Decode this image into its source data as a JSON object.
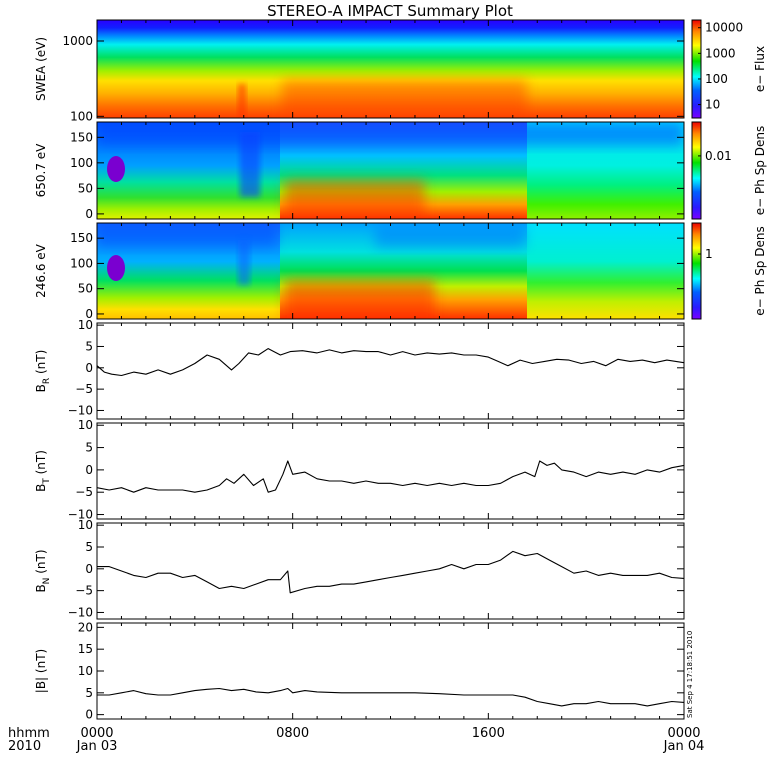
{
  "title": "STEREO-A IMPACT Summary Plot",
  "stamp": "Sat Sep  4 17:18:51 2010",
  "time_axis": {
    "label_top": "hhmm",
    "label_bottom": "2010",
    "ticks": [
      {
        "t": 0,
        "top": "0000",
        "bottom": "Jan 03"
      },
      {
        "t": 8,
        "top": "0800",
        "bottom": ""
      },
      {
        "t": 16,
        "top": "1600",
        "bottom": ""
      },
      {
        "t": 24,
        "top": "0000",
        "bottom": "Jan 04"
      }
    ]
  },
  "chart_data": [
    {
      "type": "heatmap",
      "ylabel": "SWEA (eV)",
      "ylog": true,
      "ylim": [
        95,
        1900
      ],
      "yticks": [
        {
          "v": 100,
          "label": "100"
        },
        {
          "v": 1000,
          "label": "1000"
        }
      ],
      "colorbar": {
        "label": "e− Flux",
        "log": true,
        "range": [
          3,
          20000
        ],
        "ticks": [
          {
            "v": 10,
            "label": "10"
          },
          {
            "v": 100,
            "label": "100"
          },
          {
            "v": 1000,
            "label": "1000"
          },
          {
            "v": 10000,
            "label": "10000"
          }
        ]
      }
    },
    {
      "type": "heatmap",
      "ylabel": "650.7 eV",
      "ylim": [
        -10,
        180
      ],
      "yticks": [
        {
          "v": 0,
          "label": "0"
        },
        {
          "v": 50,
          "label": "50"
        },
        {
          "v": 100,
          "label": "100"
        },
        {
          "v": 150,
          "label": "150"
        }
      ],
      "colorbar": {
        "label": "e− Ph Sp Dens",
        "log": true,
        "range": [
          0.0005,
          0.05
        ],
        "ticks": [
          {
            "v": 0.01,
            "label": "0.01"
          }
        ]
      }
    },
    {
      "type": "heatmap",
      "ylabel": "246.6 eV",
      "ylim": [
        -10,
        180
      ],
      "yticks": [
        {
          "v": 0,
          "label": "0"
        },
        {
          "v": 50,
          "label": "50"
        },
        {
          "v": 100,
          "label": "100"
        },
        {
          "v": 150,
          "label": "150"
        }
      ],
      "colorbar": {
        "label": "e− Ph Sp Dens",
        "log": true,
        "range": [
          0.1,
          3
        ],
        "ticks": [
          {
            "v": 1,
            "label": "1"
          }
        ]
      }
    },
    {
      "type": "line",
      "ylabel": "B",
      "ysub": "R",
      "yunit": " (nT)",
      "ylim": [
        -12,
        10.5
      ],
      "yticks": [
        {
          "v": -10,
          "label": "−10"
        },
        {
          "v": -5,
          "label": "−5"
        },
        {
          "v": 0,
          "label": "0"
        },
        {
          "v": 5,
          "label": "5"
        },
        {
          "v": 10,
          "label": "10"
        }
      ],
      "x": [
        0,
        0.3,
        0.6,
        1.0,
        1.5,
        2.0,
        2.5,
        3.0,
        3.5,
        4.0,
        4.5,
        5.0,
        5.5,
        5.8,
        6.2,
        6.6,
        7.0,
        7.5,
        7.9,
        8.4,
        9.0,
        9.5,
        10.0,
        10.5,
        11.0,
        11.5,
        12.0,
        12.5,
        13.0,
        13.5,
        14.0,
        14.5,
        15.0,
        15.5,
        16.0,
        16.4,
        16.8,
        17.3,
        17.8,
        18.3,
        18.8,
        19.3,
        19.8,
        20.3,
        20.8,
        21.3,
        21.8,
        22.3,
        22.8,
        23.3,
        24.0
      ],
      "y": [
        0.5,
        -1.0,
        -1.5,
        -1.8,
        -1.0,
        -1.5,
        -0.5,
        -1.5,
        -0.5,
        1.0,
        3.0,
        2.0,
        -0.5,
        1.0,
        3.5,
        3.0,
        4.5,
        3.0,
        3.8,
        4.0,
        3.5,
        4.2,
        3.5,
        4.0,
        3.8,
        3.8,
        3.0,
        3.8,
        3.0,
        3.5,
        3.2,
        3.5,
        3.0,
        3.0,
        2.5,
        1.5,
        0.5,
        1.8,
        1.0,
        1.5,
        2.0,
        1.8,
        1.0,
        1.5,
        0.5,
        2.0,
        1.5,
        1.8,
        1.2,
        1.8,
        1.2
      ]
    },
    {
      "type": "line",
      "ylabel": "B",
      "ysub": "T",
      "yunit": " (nT)",
      "ylim": [
        -11,
        10.5
      ],
      "yticks": [
        {
          "v": -10,
          "label": "−10"
        },
        {
          "v": -5,
          "label": "−5"
        },
        {
          "v": 0,
          "label": "0"
        },
        {
          "v": 5,
          "label": "5"
        },
        {
          "v": 10,
          "label": "10"
        }
      ],
      "x": [
        0,
        0.5,
        1.0,
        1.5,
        2.0,
        2.5,
        3.0,
        3.5,
        4.0,
        4.5,
        5.0,
        5.3,
        5.6,
        6.0,
        6.4,
        6.8,
        7.0,
        7.3,
        7.6,
        7.8,
        8.0,
        8.5,
        9.0,
        9.5,
        10.0,
        10.5,
        11.0,
        11.5,
        12.0,
        12.5,
        13.0,
        13.5,
        14.0,
        14.5,
        15.0,
        15.5,
        16.0,
        16.5,
        17.0,
        17.5,
        17.9,
        18.1,
        18.4,
        18.7,
        19.0,
        19.5,
        20.0,
        20.5,
        21.0,
        21.5,
        22.0,
        22.5,
        23.0,
        23.5,
        24.0
      ],
      "y": [
        -4.0,
        -4.5,
        -4.0,
        -5.0,
        -4.0,
        -4.5,
        -4.5,
        -4.5,
        -5.0,
        -4.5,
        -3.5,
        -2.0,
        -3.0,
        -1.0,
        -3.5,
        -2.0,
        -5.0,
        -4.5,
        -1.0,
        2.0,
        -1.0,
        -0.5,
        -2.0,
        -2.5,
        -2.5,
        -3.0,
        -2.5,
        -3.0,
        -3.0,
        -3.5,
        -3.0,
        -3.5,
        -3.0,
        -3.5,
        -3.0,
        -3.5,
        -3.5,
        -3.0,
        -1.5,
        -0.5,
        -1.5,
        2.0,
        1.0,
        1.5,
        0.0,
        -0.5,
        -1.5,
        -0.5,
        -1.0,
        -0.5,
        -1.0,
        0.0,
        -0.5,
        0.5,
        1.0
      ]
    },
    {
      "type": "line",
      "ylabel": "B",
      "ysub": "N",
      "yunit": " (nT)",
      "ylim": [
        -11.5,
        10.5
      ],
      "yticks": [
        {
          "v": -10,
          "label": "−10"
        },
        {
          "v": -5,
          "label": "−5"
        },
        {
          "v": 0,
          "label": "0"
        },
        {
          "v": 5,
          "label": "5"
        },
        {
          "v": 10,
          "label": "10"
        }
      ],
      "x": [
        0,
        0.5,
        1.0,
        1.5,
        2.0,
        2.5,
        3.0,
        3.5,
        4.0,
        4.5,
        5.0,
        5.5,
        6.0,
        6.5,
        7.0,
        7.5,
        7.8,
        7.9,
        8.5,
        9.0,
        9.5,
        10.0,
        10.5,
        11.0,
        11.5,
        12.0,
        12.5,
        13.0,
        13.5,
        14.0,
        14.5,
        15.0,
        15.5,
        16.0,
        16.5,
        17.0,
        17.5,
        18.0,
        18.5,
        19.0,
        19.5,
        20.0,
        20.5,
        21.0,
        21.5,
        22.0,
        22.5,
        23.0,
        23.5,
        24.0
      ],
      "y": [
        0.5,
        0.5,
        -0.5,
        -1.5,
        -2.0,
        -1.0,
        -1.0,
        -2.0,
        -1.5,
        -3.0,
        -4.5,
        -4.0,
        -4.5,
        -3.5,
        -2.5,
        -2.5,
        -0.5,
        -5.5,
        -4.5,
        -4.0,
        -4.0,
        -3.5,
        -3.5,
        -3.0,
        -2.5,
        -2.0,
        -1.5,
        -1.0,
        -0.5,
        0.0,
        1.0,
        0.0,
        1.0,
        1.0,
        2.0,
        4.0,
        3.0,
        3.5,
        2.0,
        0.5,
        -1.0,
        -0.5,
        -1.5,
        -1.0,
        -1.5,
        -1.5,
        -1.5,
        -1.0,
        -2.0,
        -2.2
      ]
    },
    {
      "type": "line",
      "ylabel": "|B|",
      "ysub": "",
      "yunit": " (nT)",
      "ylim": [
        -1,
        21
      ],
      "yticks": [
        {
          "v": 0,
          "label": "0"
        },
        {
          "v": 5,
          "label": "5"
        },
        {
          "v": 10,
          "label": "10"
        },
        {
          "v": 15,
          "label": "15"
        },
        {
          "v": 20,
          "label": "20"
        }
      ],
      "x": [
        0,
        0.5,
        1.0,
        1.5,
        2.0,
        2.5,
        3.0,
        3.5,
        4.0,
        4.5,
        5.0,
        5.5,
        6.0,
        6.5,
        7.0,
        7.5,
        7.8,
        8.0,
        8.5,
        9.0,
        10.0,
        11.0,
        12.0,
        13.0,
        14.0,
        15.0,
        16.0,
        17.0,
        17.5,
        18.0,
        18.5,
        19.0,
        19.5,
        20.0,
        20.5,
        21.0,
        21.5,
        22.0,
        22.5,
        23.0,
        23.5,
        24.0
      ],
      "y": [
        4.5,
        4.5,
        5.0,
        5.5,
        4.8,
        4.5,
        4.5,
        5.0,
        5.5,
        5.8,
        6.0,
        5.5,
        5.8,
        5.2,
        5.0,
        5.5,
        6.0,
        5.0,
        5.5,
        5.2,
        5.0,
        5.0,
        5.0,
        5.0,
        4.8,
        4.5,
        4.5,
        4.5,
        4.0,
        3.0,
        2.5,
        2.0,
        2.5,
        2.5,
        3.0,
        2.5,
        2.5,
        2.5,
        2.0,
        2.5,
        3.0,
        2.8
      ]
    }
  ]
}
